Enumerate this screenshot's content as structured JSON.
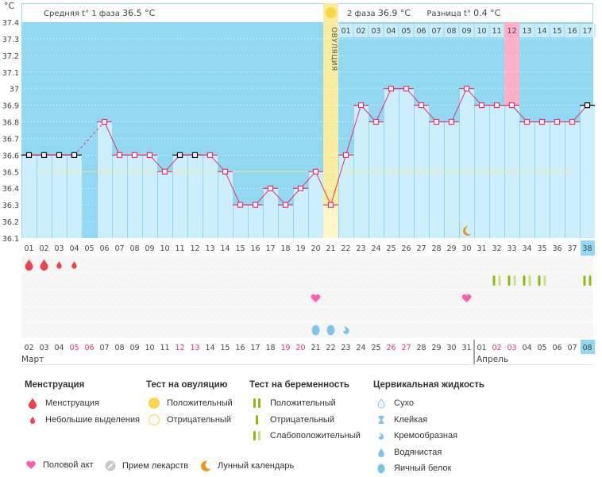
{
  "header": {
    "unit": "°C",
    "phase1_label": "Средняя t° 1 фаза",
    "phase1_value": "36.5 °C",
    "phase2_label": "2 фаза",
    "phase2_value": "36.9 °C",
    "diff_label": "Разница t°",
    "diff_value": "0.4 °C",
    "ovulation_label": "ОВУЛЯЦИЯ"
  },
  "colors": {
    "plot_bg": "#93d8f2",
    "bar_fill": "#cdeefb",
    "line": "#e8336a",
    "coverline": "#f5e88a",
    "ovulation": "#f7ec9e",
    "highlight_pink": "#ffb0c8",
    "today": "#93d8f2",
    "weekend": "#e8336a",
    "preg_pos": "#8dbb12",
    "preg_weak": "#c9e08a",
    "heart": "#ff5cae",
    "blood": "#f2404d",
    "fluid": "#7cc6ee",
    "moon": "#f09418"
  },
  "chart_data": {
    "type": "line",
    "title": "",
    "ylabel": "°C",
    "ylim": [
      36.1,
      37.4
    ],
    "yticks": [
      "37.4",
      "37.3",
      "37.2",
      "37.1",
      "37",
      "36.9",
      "36.8",
      "36.7",
      "36.6",
      "36.5",
      "36.4",
      "36.3",
      "36.2",
      "36.1"
    ],
    "cycle_days": [
      "01",
      "02",
      "03",
      "04",
      "05",
      "06",
      "07",
      "08",
      "09",
      "10",
      "11",
      "12",
      "13",
      "14",
      "15",
      "16",
      "17",
      "18",
      "19",
      "20",
      "21",
      "22",
      "23",
      "24",
      "25",
      "26",
      "27",
      "28",
      "29",
      "30",
      "31",
      "32",
      "33",
      "34",
      "35",
      "36",
      "37",
      "38"
    ],
    "dates": [
      "02",
      "03",
      "04",
      "05",
      "06",
      "07",
      "08",
      "09",
      "10",
      "11",
      "12",
      "13",
      "14",
      "15",
      "16",
      "17",
      "18",
      "19",
      "20",
      "21",
      "22",
      "23",
      "24",
      "25",
      "26",
      "27",
      "28",
      "29",
      "30",
      "31",
      "01",
      "02",
      "03",
      "04",
      "05",
      "06",
      "07",
      "08"
    ],
    "weekend_dates_idx": [
      3,
      4,
      10,
      11,
      17,
      18,
      24,
      25,
      31,
      32
    ],
    "months": [
      {
        "label": "Март",
        "start_idx": 0
      },
      {
        "label": "Апрель",
        "start_idx": 30
      }
    ],
    "temperatures": [
      36.6,
      36.6,
      36.6,
      36.6,
      null,
      36.8,
      36.6,
      36.6,
      36.6,
      36.5,
      36.6,
      36.6,
      36.6,
      36.5,
      36.3,
      36.3,
      36.4,
      36.3,
      36.4,
      36.5,
      36.3,
      36.6,
      36.9,
      36.8,
      37.0,
      37.0,
      36.9,
      36.8,
      36.8,
      37.0,
      36.9,
      36.9,
      36.9,
      36.8,
      36.8,
      36.8,
      36.8,
      36.9
    ],
    "excluded_points_idx": [
      0,
      1,
      2,
      3,
      10,
      11,
      37
    ],
    "coverline": 36.5,
    "coverline_phase1_from_idx": 1,
    "coverline_phase2_to_idx": 36,
    "ovulation_day_idx": 20,
    "phase2_day_numbers": [
      "01",
      "02",
      "03",
      "04",
      "05",
      "06",
      "07",
      "08",
      "09",
      "10",
      "11",
      "12",
      "13",
      "14",
      "15",
      "16",
      "17"
    ],
    "phase2_highlight_idx": 11,
    "today_idx": 37,
    "menstruation": [
      {
        "idx": 0,
        "type": "heavy"
      },
      {
        "idx": 1,
        "type": "heavy"
      },
      {
        "idx": 2,
        "type": "light"
      },
      {
        "idx": 3,
        "type": "light"
      }
    ],
    "pregnancy_tests": [
      {
        "idx": 31,
        "type": "weak"
      },
      {
        "idx": 32,
        "type": "weak"
      },
      {
        "idx": 33,
        "type": "weak"
      },
      {
        "idx": 34,
        "type": "weak"
      },
      {
        "idx": 37,
        "type": "positive"
      }
    ],
    "intercourse": [
      19,
      29
    ],
    "cervical_fluid": [
      {
        "idx": 19,
        "type": "egg_white"
      },
      {
        "idx": 20,
        "type": "egg_white"
      },
      {
        "idx": 21,
        "type": "creamy"
      }
    ],
    "moon": [
      29
    ]
  },
  "legend": {
    "menstruation": {
      "title": "Менструация",
      "items": [
        "Менструация",
        "Небольшие выделения"
      ]
    },
    "ovulation_test": {
      "title": "Тест на овуляцию",
      "items": [
        "Положительный",
        "Отрицательный"
      ]
    },
    "pregnancy_test": {
      "title": "Тест на беременность",
      "items": [
        "Положительный",
        "Отрицательный",
        "Слабоположительный"
      ]
    },
    "cervical_fluid": {
      "title": "Цервикальная жидкость",
      "items": [
        "Сухо",
        "Клейкая",
        "Кремообразная",
        "Водянистая",
        "Яичный белок"
      ]
    },
    "bottom": {
      "intercourse": "Половой акт",
      "medication": "Прием лекарств",
      "moon": "Лунный календарь"
    }
  }
}
